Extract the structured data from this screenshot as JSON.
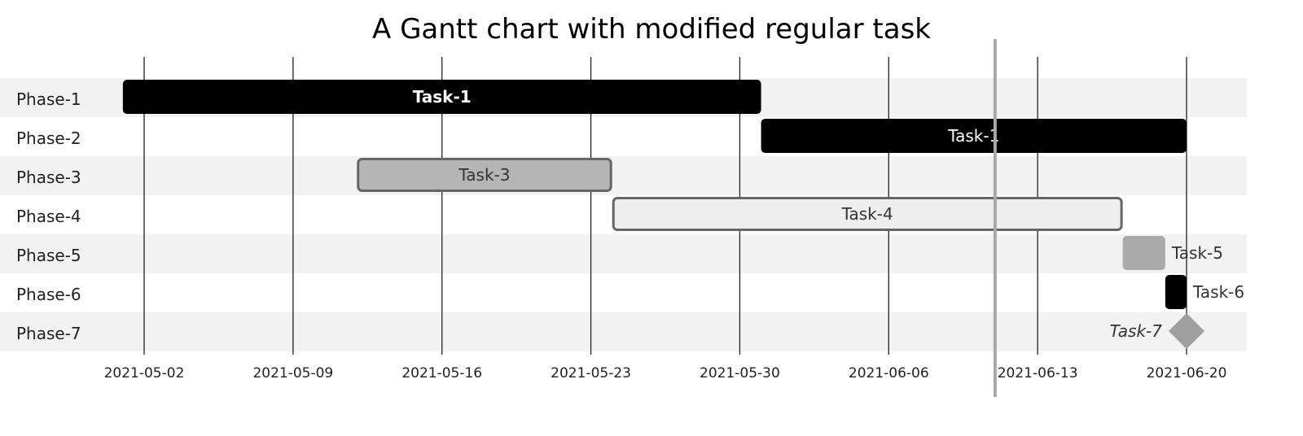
{
  "chart_data": {
    "type": "gantt",
    "title": "A Gantt chart with modified regular task",
    "x_ticks": [
      "2021-05-02",
      "2021-05-09",
      "2021-05-16",
      "2021-05-23",
      "2021-05-30",
      "2021-06-06",
      "2021-06-13",
      "2021-06-20"
    ],
    "xlim": [
      "2021-04-28",
      "2021-06-23"
    ],
    "today": "2021-06-11",
    "grid": true,
    "row_banding": true,
    "rows": [
      "Phase-1",
      "Phase-2",
      "Phase-3",
      "Phase-4",
      "Phase-5",
      "Phase-6",
      "Phase-7"
    ],
    "tasks": [
      {
        "row": "Phase-1",
        "label": "Task-1",
        "start": "2021-05-01",
        "end": "2021-05-31",
        "kind": "bar",
        "fill": "#000000",
        "text_color": "#ffffff",
        "bold": true,
        "label_position": "inside"
      },
      {
        "row": "Phase-2",
        "label": "Task-1",
        "start": "2021-05-31",
        "end": "2021-06-20",
        "kind": "bar",
        "fill": "#000000",
        "text_color": "#ffffff",
        "bold": false,
        "label_position": "inside"
      },
      {
        "row": "Phase-3",
        "label": "Task-3",
        "start": "2021-05-12",
        "end": "2021-05-24",
        "kind": "bar",
        "fill": "#b5b5b5",
        "stroke": "#666666",
        "text_color": "#333333",
        "label_position": "inside"
      },
      {
        "row": "Phase-4",
        "label": "Task-4",
        "start": "2021-05-24",
        "end": "2021-06-17",
        "kind": "bar",
        "fill": "#eeeeee",
        "stroke": "#666666",
        "text_color": "#333333",
        "label_position": "inside"
      },
      {
        "row": "Phase-5",
        "label": "Task-5",
        "start": "2021-06-17",
        "end": "2021-06-19",
        "kind": "bar",
        "fill": "#aaaaaa",
        "text_color": "#333333",
        "label_position": "right"
      },
      {
        "row": "Phase-6",
        "label": "Task-6",
        "start": "2021-06-19",
        "end": "2021-06-20",
        "kind": "bar",
        "fill": "#000000",
        "text_color": "#333333",
        "label_position": "right"
      },
      {
        "row": "Phase-7",
        "label": "Task-7",
        "start": "2021-06-20",
        "end": "2021-06-20",
        "kind": "milestone",
        "fill": "#a0a0a0",
        "text_color": "#333333",
        "italic": true,
        "label_position": "left"
      }
    ]
  }
}
